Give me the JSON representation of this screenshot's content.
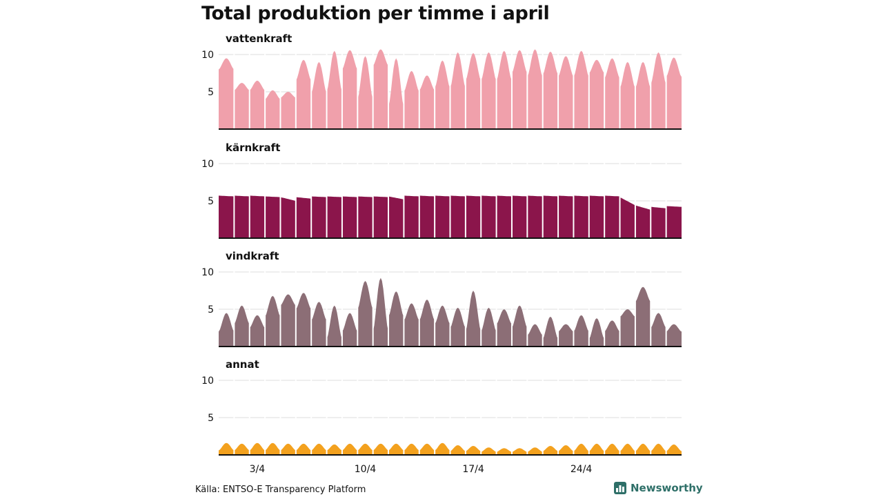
{
  "title": "Total produktion per timme i april",
  "source": "Källa: ENTSO-E Transparency Platform",
  "brand": {
    "name": "Newsworthy",
    "icon": "newsworthy-logo-icon",
    "color": "#2e6f68"
  },
  "chart_data": {
    "type": "area",
    "days": 30,
    "ylim": [
      0,
      10
    ],
    "yticks": [
      5,
      10
    ],
    "grid": true,
    "x_ticks": [
      {
        "day": 3,
        "label": "3/4"
      },
      {
        "day": 10,
        "label": "10/4"
      },
      {
        "day": 17,
        "label": "17/4"
      },
      {
        "day": 24,
        "label": "24/4"
      }
    ],
    "panels": [
      {
        "name": "vattenkraft",
        "color": "#f0a0ab",
        "daily_min": [
          8.0,
          5.2,
          5.2,
          4.0,
          4.2,
          6.5,
          4.8,
          5.0,
          8.0,
          4.0,
          8.5,
          3.0,
          5.0,
          5.2,
          5.5,
          5.5,
          6.5,
          6.5,
          6.5,
          7.5,
          7.0,
          7.3,
          7.0,
          7.0,
          7.5,
          6.8,
          5.5,
          5.5,
          6.0,
          7.0
        ],
        "daily_max": [
          9.5,
          6.2,
          6.5,
          5.2,
          5.0,
          9.3,
          9.0,
          10.5,
          10.6,
          9.8,
          10.7,
          9.5,
          7.8,
          7.2,
          9.2,
          10.3,
          10.2,
          10.3,
          10.5,
          10.6,
          10.7,
          10.4,
          9.8,
          10.5,
          9.3,
          9.5,
          9.0,
          9.0,
          10.3,
          9.6
        ]
      },
      {
        "name": "kärnkraft",
        "color": "#8b154b",
        "daily_min": [
          5.6,
          5.6,
          5.6,
          5.5,
          5.0,
          5.3,
          5.5,
          5.5,
          5.5,
          5.5,
          5.5,
          5.2,
          5.6,
          5.6,
          5.6,
          5.6,
          5.6,
          5.6,
          5.6,
          5.6,
          5.6,
          5.6,
          5.6,
          5.6,
          5.6,
          5.6,
          4.4,
          3.8,
          4.0,
          4.2
        ],
        "daily_max": [
          5.7,
          5.7,
          5.7,
          5.6,
          5.5,
          5.5,
          5.6,
          5.6,
          5.6,
          5.6,
          5.6,
          5.6,
          5.7,
          5.7,
          5.7,
          5.7,
          5.7,
          5.7,
          5.7,
          5.7,
          5.7,
          5.7,
          5.7,
          5.7,
          5.7,
          5.7,
          5.5,
          4.4,
          4.2,
          4.3
        ],
        "flat": true
      },
      {
        "name": "vindkraft",
        "color": "#8c6e76",
        "daily_min": [
          2.0,
          3.0,
          2.5,
          4.0,
          5.5,
          5.0,
          3.5,
          1.0,
          2.0,
          5.0,
          2.0,
          4.0,
          3.5,
          3.5,
          3.0,
          2.5,
          2.0,
          2.0,
          3.0,
          2.5,
          1.5,
          1.0,
          2.0,
          2.0,
          1.0,
          2.0,
          4.0,
          6.0,
          2.5,
          2.0
        ],
        "daily_max": [
          4.5,
          5.5,
          4.2,
          6.8,
          7.0,
          7.2,
          6.0,
          5.5,
          4.5,
          8.8,
          9.2,
          7.4,
          5.8,
          6.3,
          5.5,
          5.2,
          7.5,
          5.2,
          5.0,
          5.5,
          3.0,
          4.0,
          3.0,
          4.2,
          3.8,
          3.5,
          5.0,
          8.0,
          4.5,
          3.0
        ]
      },
      {
        "name": "annat",
        "color": "#f3a11e",
        "daily_min": [
          0.6,
          0.6,
          0.6,
          0.6,
          0.6,
          0.6,
          0.6,
          0.6,
          0.6,
          0.6,
          0.6,
          0.6,
          0.6,
          0.6,
          0.6,
          0.5,
          0.5,
          0.4,
          0.4,
          0.4,
          0.4,
          0.5,
          0.5,
          0.5,
          0.5,
          0.5,
          0.5,
          0.5,
          0.5,
          0.5
        ],
        "daily_max": [
          1.6,
          1.5,
          1.6,
          1.6,
          1.5,
          1.5,
          1.5,
          1.4,
          1.5,
          1.5,
          1.5,
          1.5,
          1.5,
          1.5,
          1.6,
          1.3,
          1.2,
          1.0,
          0.9,
          0.9,
          1.0,
          1.2,
          1.3,
          1.5,
          1.5,
          1.5,
          1.5,
          1.5,
          1.5,
          1.4
        ]
      }
    ]
  }
}
